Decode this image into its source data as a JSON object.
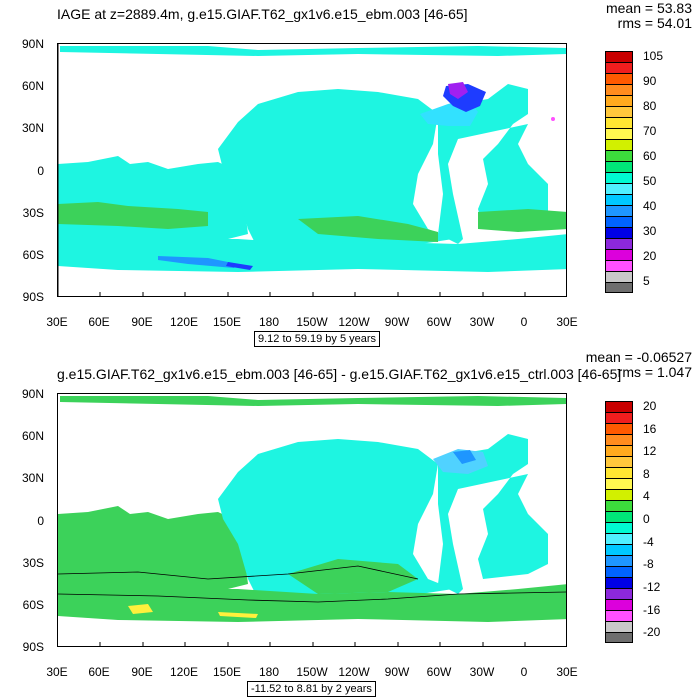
{
  "top_panel": {
    "title": "IAGE at z=2889.4m, g.e15.GIAF.T62_gx1v6.e15_ebm.003 [46-65]",
    "mean_text": "mean = 53.83",
    "rms_text": "rms = 54.01",
    "contour_info": "9.12 to 59.19 by 5 years",
    "y_tick_labels": [
      "90N",
      "60N",
      "30N",
      "0",
      "30S",
      "60S",
      "90S"
    ],
    "x_tick_labels": [
      "30E",
      "60E",
      "90E",
      "120E",
      "150E",
      "180",
      "150W",
      "120W",
      "90W",
      "60W",
      "30W",
      "0",
      "30E"
    ],
    "colorbar_labels": [
      "105",
      "90",
      "80",
      "70",
      "60",
      "50",
      "40",
      "30",
      "20",
      "5"
    ],
    "colorbar_colors": [
      "#c80000",
      "#f01e1e",
      "#ff5a00",
      "#ff8c1e",
      "#ffaa1e",
      "#ffc83c",
      "#ffe632",
      "#fff850",
      "#d2f000",
      "#3cdc3c",
      "#00e678",
      "#00fad2",
      "#50f0ff",
      "#00c8ff",
      "#1e96ff",
      "#0064ff",
      "#0000e6",
      "#8c28dc",
      "#dc00dc",
      "#ff50ff",
      "#c8c8c8",
      "#6e6e6e"
    ],
    "colors": {
      "ocean_main": "#1ef5e1",
      "band_green": "#3cd25a",
      "light_blue": "#32e1ff",
      "deep_blue": "#1e3cff",
      "purple": "#a020f0"
    }
  },
  "bottom_panel": {
    "title": "g.e15.GIAF.T62_gx1v6.e15_ebm.003 [46-65] - g.e15.GIAF.T62_gx1v6.e15_ctrl.003 [46-65]",
    "mean_text": "mean = -0.06527",
    "rms_text": "rms = 1.047",
    "contour_info": "-11.52 to 8.81 by 2 years",
    "y_tick_labels": [
      "90N",
      "60N",
      "30N",
      "0",
      "30S",
      "60S",
      "90S"
    ],
    "x_tick_labels": [
      "30E",
      "60E",
      "90E",
      "120E",
      "150E",
      "180",
      "150W",
      "120W",
      "90W",
      "60W",
      "30W",
      "0",
      "30E"
    ],
    "colorbar_labels": [
      "20",
      "16",
      "12",
      "8",
      "4",
      "0",
      "-4",
      "-8",
      "-12",
      "-16",
      "-20"
    ],
    "colorbar_colors": [
      "#c80000",
      "#f01e1e",
      "#ff5a00",
      "#ff8c1e",
      "#ffaa1e",
      "#ffc83c",
      "#ffe632",
      "#fff850",
      "#d2f000",
      "#3cdc3c",
      "#00e678",
      "#00fad2",
      "#50f0ff",
      "#00c8ff",
      "#1e96ff",
      "#0064ff",
      "#0000e6",
      "#8c28dc",
      "#dc00dc",
      "#ff50ff",
      "#c8c8c8",
      "#6e6e6e"
    ],
    "colors": {
      "ocean_main": "#1ef5e1",
      "band_green": "#3cd25a",
      "yellow": "#fff03c",
      "light_blue": "#50d2ff",
      "blue": "#1e96ff"
    }
  }
}
